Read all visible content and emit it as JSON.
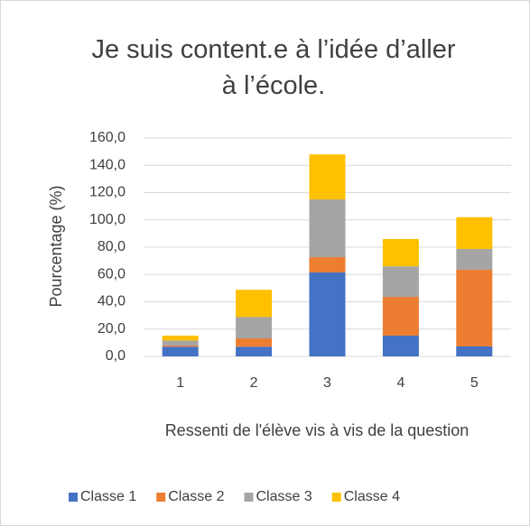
{
  "chart_data": {
    "type": "bar",
    "stacked": true,
    "title": "Je suis content.e à l’idée d’aller à l’école.",
    "x_label": "Ressenti de l'élève vis à vis de la question",
    "y_label": "Pourcentage (%)",
    "categories": [
      "1",
      "2",
      "3",
      "4",
      "5"
    ],
    "series": [
      {
        "name": "Classe 1",
        "color": "#4472c4",
        "values": [
          7.1,
          7.1,
          61.5,
          15.2,
          7.3
        ]
      },
      {
        "name": "Classe 2",
        "color": "#ed7d31",
        "values": [
          0.9,
          6.1,
          11.2,
          28.4,
          56.2
        ]
      },
      {
        "name": "Classe 3",
        "color": "#a5a5a5",
        "values": [
          3.6,
          15.6,
          42.3,
          22.4,
          15.2
        ]
      },
      {
        "name": "Classe 4",
        "color": "#ffc000",
        "values": [
          3.6,
          20.0,
          33.0,
          20.0,
          23.3
        ]
      }
    ],
    "ylim": [
      0,
      160
    ],
    "yticks": [
      {
        "value": 0,
        "label": "0,0"
      },
      {
        "value": 20,
        "label": "20,0"
      },
      {
        "value": 40,
        "label": "40,0"
      },
      {
        "value": 60,
        "label": "60,0"
      },
      {
        "value": 80,
        "label": "80,0"
      },
      {
        "value": 100,
        "label": "100,0"
      },
      {
        "value": 120,
        "label": "120,0"
      },
      {
        "value": 140,
        "label": "140,0"
      },
      {
        "value": 160,
        "label": "160,0"
      }
    ],
    "grid": true,
    "legend": "bottom"
  }
}
